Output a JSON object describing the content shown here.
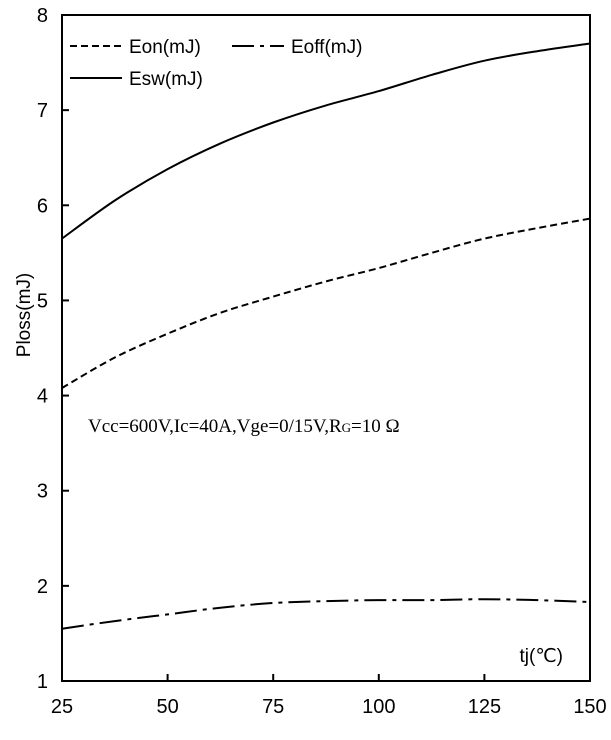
{
  "chart_data": {
    "type": "line",
    "title": "",
    "xlabel": "tj(℃)",
    "ylabel": "Ploss(mJ)",
    "xlim": [
      25,
      150
    ],
    "ylim": [
      1,
      8
    ],
    "xticks": [
      25,
      50,
      75,
      100,
      125,
      150
    ],
    "yticks": [
      1,
      2,
      3,
      4,
      5,
      6,
      7,
      8
    ],
    "grid": false,
    "legend_position": "top-left",
    "annotation": {
      "main": "Vcc=600V,Ic=40A,Vge=0/15V,R",
      "subscript": "G",
      "tail": "=10 Ω"
    },
    "series": [
      {
        "name": "Eon(mJ)",
        "style": "dashed",
        "color": "#000000",
        "x": [
          25,
          37.5,
          50,
          62.5,
          75,
          87.5,
          100,
          112.5,
          125,
          137.5,
          150
        ],
        "y": [
          4.08,
          4.4,
          4.65,
          4.87,
          5.04,
          5.2,
          5.34,
          5.5,
          5.65,
          5.76,
          5.86
        ]
      },
      {
        "name": "Eoff(mJ)",
        "style": "dashdot",
        "color": "#000000",
        "x": [
          25,
          37.5,
          50,
          62.5,
          75,
          87.5,
          100,
          112.5,
          125,
          137.5,
          150
        ],
        "y": [
          1.55,
          1.63,
          1.7,
          1.77,
          1.82,
          1.84,
          1.85,
          1.85,
          1.86,
          1.85,
          1.83
        ]
      },
      {
        "name": "Esw(mJ)",
        "style": "solid",
        "color": "#000000",
        "x": [
          25,
          37.5,
          50,
          62.5,
          75,
          87.5,
          100,
          112.5,
          125,
          137.5,
          150
        ],
        "y": [
          5.65,
          6.05,
          6.38,
          6.65,
          6.87,
          7.05,
          7.2,
          7.37,
          7.52,
          7.62,
          7.7
        ]
      }
    ]
  }
}
